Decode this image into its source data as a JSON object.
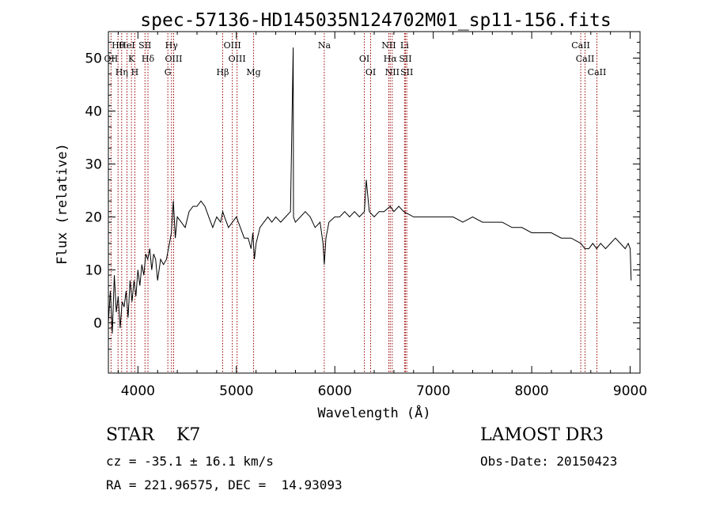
{
  "chart_data": {
    "type": "line",
    "title": "spec-57136-HD145035N124702M01_sp11-156.fits",
    "xlabel": "Wavelength (Å)",
    "ylabel": "Flux (relative)",
    "xlim": [
      3700,
      9100
    ],
    "ylim": [
      -9.5,
      55
    ],
    "xticks": [
      4000,
      5000,
      6000,
      7000,
      8000,
      9000
    ],
    "yticks": [
      0,
      10,
      20,
      30,
      40,
      50
    ],
    "grid": false,
    "series": [
      {
        "name": "spectrum",
        "x": [
          3700,
          3720,
          3740,
          3760,
          3780,
          3800,
          3820,
          3840,
          3860,
          3880,
          3900,
          3920,
          3940,
          3960,
          3980,
          4000,
          4020,
          4040,
          4060,
          4080,
          4100,
          4120,
          4140,
          4160,
          4180,
          4200,
          4230,
          4260,
          4290,
          4320,
          4340,
          4360,
          4380,
          4400,
          4440,
          4480,
          4520,
          4560,
          4600,
          4640,
          4680,
          4720,
          4760,
          4800,
          4840,
          4861,
          4880,
          4920,
          4960,
          5000,
          5040,
          5080,
          5120,
          5150,
          5167,
          5183,
          5200,
          5240,
          5280,
          5320,
          5360,
          5400,
          5450,
          5500,
          5550,
          5577,
          5580,
          5600,
          5650,
          5700,
          5750,
          5800,
          5850,
          5880,
          5893,
          5910,
          5940,
          6000,
          6050,
          6100,
          6150,
          6200,
          6250,
          6300,
          6320,
          6350,
          6400,
          6450,
          6500,
          6563,
          6600,
          6650,
          6700,
          6800,
          6900,
          7000,
          7100,
          7200,
          7300,
          7400,
          7500,
          7600,
          7700,
          7800,
          7900,
          8000,
          8100,
          8200,
          8300,
          8400,
          8500,
          8540,
          8580,
          8620,
          8660,
          8700,
          8750,
          8800,
          8850,
          8900,
          8950,
          8980,
          9000,
          9010
        ],
        "values": [
          0,
          6,
          -2,
          9,
          2,
          5,
          -1,
          4,
          3,
          6,
          1,
          8,
          4,
          8,
          5,
          10,
          7,
          11,
          9,
          13,
          12,
          14,
          10,
          13,
          12,
          8,
          12,
          11,
          12,
          15,
          17,
          23,
          16,
          20,
          19,
          18,
          21,
          22,
          22,
          23,
          22,
          20,
          18,
          20,
          19,
          21,
          20,
          18,
          19,
          20,
          18,
          16,
          16,
          14,
          17,
          12,
          15,
          18,
          19,
          20,
          19,
          20,
          19,
          20,
          21,
          52,
          20,
          19,
          20,
          21,
          20,
          18,
          19,
          15,
          11,
          16,
          19,
          20,
          20,
          21,
          20,
          21,
          20,
          21,
          27,
          21,
          20,
          21,
          21,
          22,
          21,
          22,
          21,
          20,
          20,
          20,
          20,
          20,
          19,
          20,
          19,
          19,
          19,
          18,
          18,
          17,
          17,
          17,
          16,
          16,
          15,
          14,
          14,
          15,
          14,
          15,
          14,
          15,
          16,
          15,
          14,
          15,
          14,
          8
        ]
      }
    ],
    "lines": [
      {
        "label": "Hθ",
        "wl": 3798
      },
      {
        "label": "OII",
        "wl": 3727
      },
      {
        "label": "Hη",
        "wl": 3835
      },
      {
        "label": "HeI",
        "wl": 3889
      },
      {
        "label": "K",
        "wl": 3934
      },
      {
        "label": "H",
        "wl": 3969
      },
      {
        "label": "SII",
        "wl": 4072
      },
      {
        "label": "Hδ",
        "wl": 4102
      },
      {
        "label": "G",
        "wl": 4304
      },
      {
        "label": "Hγ",
        "wl": 4341
      },
      {
        "label": "OIII",
        "wl": 4363
      },
      {
        "label": "Hβ",
        "wl": 4861
      },
      {
        "label": "OIII",
        "wl": 4959
      },
      {
        "label": "OIII",
        "wl": 5007
      },
      {
        "label": "Mg",
        "wl": 5175
      },
      {
        "label": "Na",
        "wl": 5893
      },
      {
        "label": "OI",
        "wl": 6300
      },
      {
        "label": "OI",
        "wl": 6364
      },
      {
        "label": "NII",
        "wl": 6548
      },
      {
        "label": "Hα",
        "wl": 6563
      },
      {
        "label": "NII",
        "wl": 6583
      },
      {
        "label": "Li",
        "wl": 6708
      },
      {
        "label": "SII",
        "wl": 6717
      },
      {
        "label": "SII",
        "wl": 6731
      },
      {
        "label": "CaII",
        "wl": 8498
      },
      {
        "label": "CaII",
        "wl": 8542
      },
      {
        "label": "CaII",
        "wl": 8662
      }
    ],
    "line_color": "#990000"
  },
  "info": {
    "object_class": "STAR",
    "subclass": "K7",
    "star_line": "STAR    K7",
    "survey": "LAMOST DR3",
    "cz": "cz = -35.1 ± 16.1 km/s",
    "obs_date": "Obs-Date: 20150423",
    "radec": "RA = 221.96575, DEC =  14.93093"
  }
}
